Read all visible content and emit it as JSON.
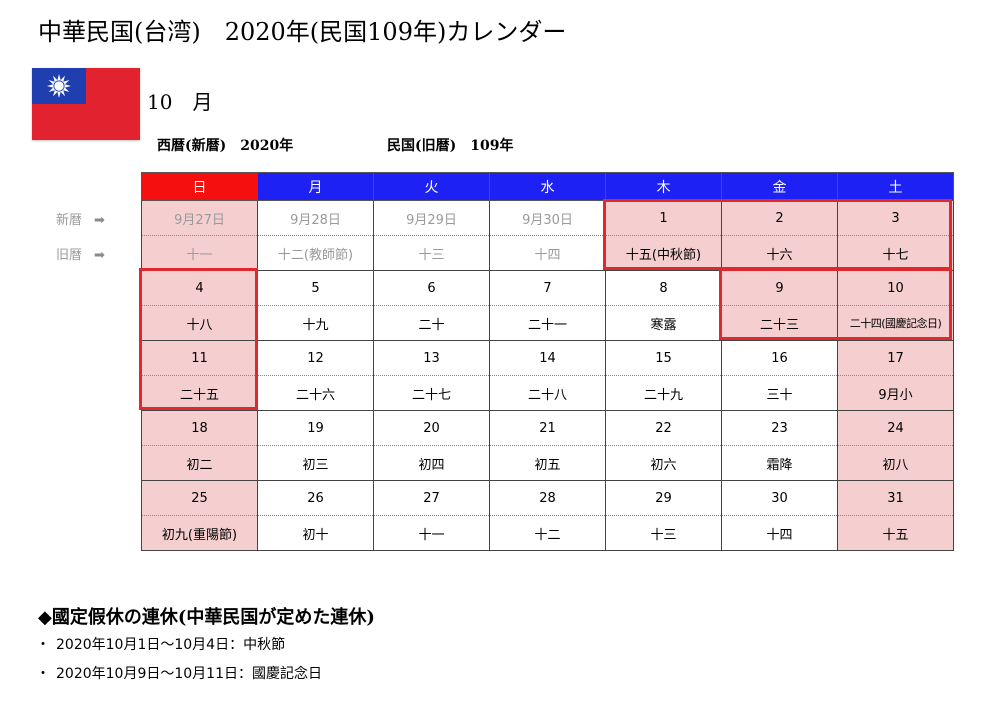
{
  "title": "中華民国(台湾)　2020年(民国109年)カレンダー",
  "month_label": "10　月",
  "flag_icon": "taiwan-flag",
  "era": {
    "western": "西暦(新暦)　2020年",
    "roc": "民国(旧暦)　109年"
  },
  "row_labels": {
    "solar": "新暦",
    "lunar": "旧暦",
    "arrow": "➡"
  },
  "colors": {
    "weekday_header": "#1e21f4",
    "sunday_header": "#f50f0f",
    "holiday_fill": "#f5cfcf",
    "highlight_border": "#e0282f"
  },
  "weekdays": [
    "日",
    "月",
    "火",
    "水",
    "木",
    "金",
    "土"
  ],
  "weeks": [
    {
      "dates": [
        "9月27日",
        "9月28日",
        "9月29日",
        "9月30日",
        "1",
        "2",
        "3"
      ],
      "lunar": [
        "十一",
        "十二(教師節)",
        "十三",
        "十四",
        "十五(中秋節)",
        "十六",
        "十七"
      ]
    },
    {
      "dates": [
        "4",
        "5",
        "6",
        "7",
        "8",
        "9",
        "10"
      ],
      "lunar": [
        "十八",
        "十九",
        "二十",
        "二十一",
        "寒露",
        "二十三",
        "二十四(國慶記念日)"
      ]
    },
    {
      "dates": [
        "11",
        "12",
        "13",
        "14",
        "15",
        "16",
        "17"
      ],
      "lunar": [
        "二十五",
        "二十六",
        "二十七",
        "二十八",
        "二十九",
        "三十",
        "9月小"
      ]
    },
    {
      "dates": [
        "18",
        "19",
        "20",
        "21",
        "22",
        "23",
        "24"
      ],
      "lunar": [
        "初二",
        "初三",
        "初四",
        "初五",
        "初六",
        "霜降",
        "初八"
      ]
    },
    {
      "dates": [
        "25",
        "26",
        "27",
        "28",
        "29",
        "30",
        "31"
      ],
      "lunar": [
        "初九(重陽節)",
        "初十",
        "十一",
        "十二",
        "十三",
        "十四",
        "十五"
      ]
    }
  ],
  "holidays": {
    "title": "◆國定假休の連休(中華民国が定めた連休)",
    "bullet": "・",
    "items": [
      "2020年10月1日～10月4日：中秋節",
      "2020年10月9日～10月11日：國慶記念日"
    ]
  }
}
